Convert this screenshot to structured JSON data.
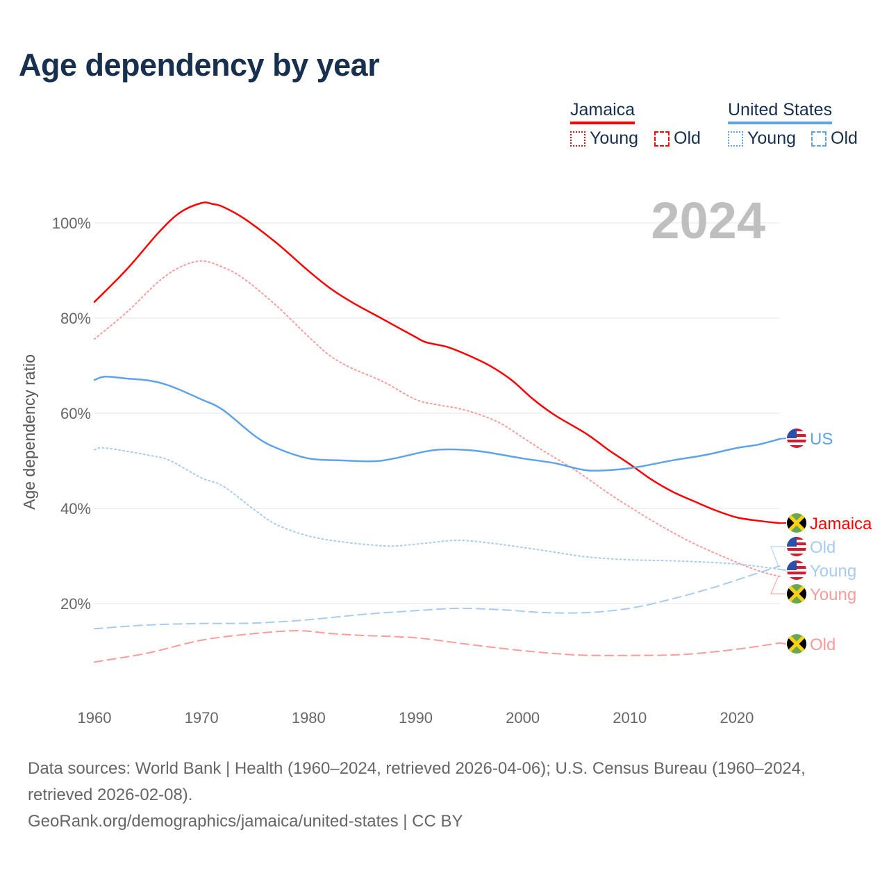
{
  "title": "Age dependency by year",
  "legend": {
    "groups": [
      {
        "name": "Jamaica",
        "color": "#ff0000",
        "items": [
          "Young",
          "Old"
        ]
      },
      {
        "name": "United States",
        "color": "#5ea3e8",
        "items": [
          "Young",
          "Old"
        ]
      }
    ]
  },
  "footer": {
    "sources": "Data sources: World Bank | Health (1960–2024, retrieved 2026-04-06); U.S. Census Bureau (1960–2024, retrieved 2026-02-08).",
    "attribution": "GeoRank.org/demographics/jamaica/united-states | CC BY"
  },
  "chart_data": {
    "type": "line",
    "title": "Age dependency by year",
    "ylabel": "Age dependency ratio",
    "xlabel": "",
    "current_year_label": "2024",
    "xlim": [
      1960,
      2024
    ],
    "ylim": [
      0,
      100
    ],
    "x_ticks": [
      1960,
      1970,
      1980,
      1990,
      2000,
      2010,
      2020
    ],
    "y_ticks": [
      {
        "v": 20,
        "label": "20%"
      },
      {
        "v": 40,
        "label": "40%"
      },
      {
        "v": 60,
        "label": "60%"
      },
      {
        "v": 80,
        "label": "80%"
      },
      {
        "v": 100,
        "label": "100%"
      }
    ],
    "grid": true,
    "series": [
      {
        "name": "Jamaica",
        "end_label": "Jamaica",
        "flag": "jamaica-flag",
        "color": "#ff0000",
        "style": "solid",
        "x": [
          1960,
          1963,
          1966,
          1968,
          1970,
          1971,
          1972,
          1974,
          1977,
          1980,
          1982,
          1984,
          1987,
          1990,
          1991,
          1993,
          1995,
          1997,
          1999,
          2001,
          2003,
          2006,
          2008,
          2010,
          2012,
          2014,
          2016,
          2018,
          2020,
          2022,
          2024
        ],
        "y": [
          83.4,
          90.2,
          98,
          102.2,
          104.2,
          104,
          103.4,
          100.9,
          95.8,
          89.9,
          86.3,
          83.4,
          79.7,
          76,
          74.9,
          73.9,
          72.1,
          69.9,
          66.9,
          62.9,
          59.6,
          55.6,
          52.3,
          49.3,
          46.1,
          43.5,
          41.5,
          39.6,
          38.1,
          37.4,
          36.9
        ]
      },
      {
        "name": "Jamaica Young",
        "end_label": "Young",
        "flag": "jamaica-flag",
        "color": "#ff9a9a",
        "style": "dotted",
        "x": [
          1960,
          1963,
          1966,
          1968,
          1970,
          1972,
          1974,
          1977,
          1980,
          1982,
          1984,
          1987,
          1990,
          1992,
          1994,
          1996,
          1998,
          2000,
          2002,
          2005,
          2008,
          2010,
          2013,
          2016,
          2019,
          2022,
          2024
        ],
        "y": [
          75.6,
          81.2,
          87.7,
          90.7,
          92,
          90.7,
          88.2,
          82.6,
          76.1,
          72.1,
          69.5,
          66.6,
          62.9,
          61.8,
          61,
          59.7,
          57.8,
          54.9,
          52,
          47.9,
          43.2,
          40.3,
          36.2,
          32.6,
          29.6,
          26.9,
          25.7
        ]
      },
      {
        "name": "Jamaica Old",
        "end_label": "Old",
        "flag": "jamaica-flag",
        "color": "#ff9a9a",
        "style": "dashed",
        "x": [
          1960,
          1965,
          1970,
          1975,
          1979,
          1982,
          1985,
          1990,
          1995,
          2000,
          2005,
          2010,
          2015,
          2020,
          2024
        ],
        "y": [
          7.7,
          9.6,
          12.3,
          13.7,
          14.3,
          13.7,
          13.3,
          12.8,
          11.4,
          10.1,
          9.2,
          9.1,
          9.3,
          10.4,
          11.7
        ]
      },
      {
        "name": "US",
        "end_label": "US",
        "flag": "us-flag",
        "color": "#5ea3e8",
        "style": "solid",
        "x": [
          1960,
          1961,
          1963,
          1965,
          1967,
          1970,
          1972,
          1975,
          1977,
          1980,
          1983,
          1986,
          1988,
          1991,
          1993,
          1996,
          2000,
          2003,
          2006,
          2009,
          2011,
          2014,
          2017,
          2020,
          2022,
          2024
        ],
        "y": [
          67,
          67.7,
          67.3,
          66.9,
          65.8,
          62.9,
          60.7,
          55.2,
          52.7,
          50.5,
          50.1,
          49.9,
          50.5,
          52,
          52.4,
          52,
          50.5,
          49.5,
          48,
          48.2,
          48.8,
          50.1,
          51.2,
          52.7,
          53.4,
          54.6
        ]
      },
      {
        "name": "US Young",
        "end_label": "Young",
        "flag": "us-flag",
        "color": "#a7cbf1",
        "style": "dotted",
        "x": [
          1960,
          1961,
          1965,
          1967,
          1970,
          1972,
          1975,
          1977,
          1980,
          1983,
          1986,
          1988,
          1991,
          1994,
          1997,
          2000,
          2003,
          2006,
          2010,
          2015,
          2020,
          2024
        ],
        "y": [
          52.3,
          52.7,
          51.2,
          50.1,
          46.4,
          44.7,
          39.6,
          36.6,
          34.2,
          33,
          32.3,
          32.1,
          32.7,
          33.3,
          32.7,
          31.8,
          30.8,
          29.8,
          29.2,
          28.9,
          28.3,
          27.2
        ]
      },
      {
        "name": "US Old",
        "end_label": "Old",
        "flag": "us-flag",
        "color": "#a7cbf1",
        "style": "dashed",
        "x": [
          1960,
          1965,
          1970,
          1975,
          1980,
          1985,
          1990,
          1994,
          1998,
          2002,
          2006,
          2010,
          2014,
          2018,
          2021,
          2024
        ],
        "y": [
          14.7,
          15.5,
          15.8,
          15.9,
          16.6,
          17.7,
          18.5,
          19,
          18.7,
          18.1,
          18.1,
          19,
          21,
          23.5,
          25.7,
          27.9
        ]
      }
    ]
  }
}
